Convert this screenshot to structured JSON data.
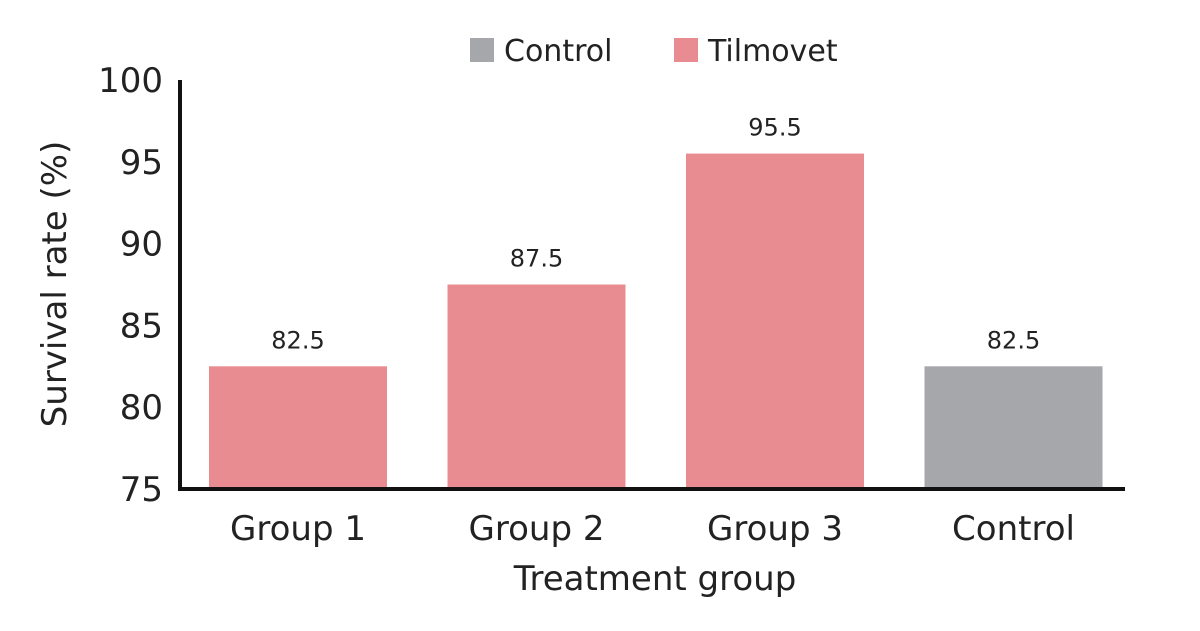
{
  "chart_data": {
    "type": "bar",
    "title": "",
    "xlabel": "Treatment group",
    "ylabel": "Survival rate (%)",
    "ylim": [
      75,
      100
    ],
    "yticks": [
      75,
      80,
      85,
      90,
      95,
      100
    ],
    "categories": [
      "Group 1",
      "Group 2",
      "Group 3",
      "Control"
    ],
    "values": [
      82.5,
      87.5,
      95.5,
      82.5
    ],
    "data_labels": [
      "82.5",
      "87.5",
      "95.5",
      "82.5"
    ],
    "bar_series": [
      "Tilmovet",
      "Tilmovet",
      "Tilmovet",
      "Control"
    ],
    "legend": {
      "placement": "top-center",
      "entries": [
        {
          "name": "Control",
          "color": "#a6a7ab"
        },
        {
          "name": "Tilmovet",
          "color": "#e98c91"
        }
      ]
    },
    "grid": false
  }
}
